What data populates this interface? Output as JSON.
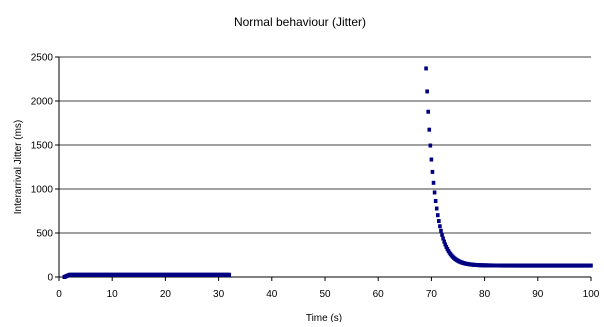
{
  "chart_data": {
    "type": "scatter",
    "title": "Normal behaviour (Jitter)",
    "xlabel": "Time (s)",
    "ylabel": "Interarrival Jitter (ms)",
    "xlim": [
      0,
      100
    ],
    "ylim": [
      0,
      2500
    ],
    "x_ticks": [
      "0",
      "10",
      "20",
      "30",
      "40",
      "50",
      "60",
      "70",
      "80",
      "90",
      "100"
    ],
    "y_ticks": [
      "0",
      "500",
      "1000",
      "1500",
      "2000",
      "2500"
    ],
    "grid": "horizontal",
    "legend": "none",
    "marker_color": "#000080",
    "series": [
      {
        "segments": [
          {
            "x_start": 1.0,
            "x_end": 32.0,
            "step": 0.2,
            "y_const": 25,
            "ramp_from": 0,
            "ramp_to": 25,
            "ramp_until": 2.0
          },
          {
            "x_start": 69.0,
            "x_end": 100.0,
            "step": 0.2,
            "decay_start_y": 2370,
            "decay_floor_y": 130,
            "decay_rate": 0.62
          }
        ]
      }
    ]
  }
}
